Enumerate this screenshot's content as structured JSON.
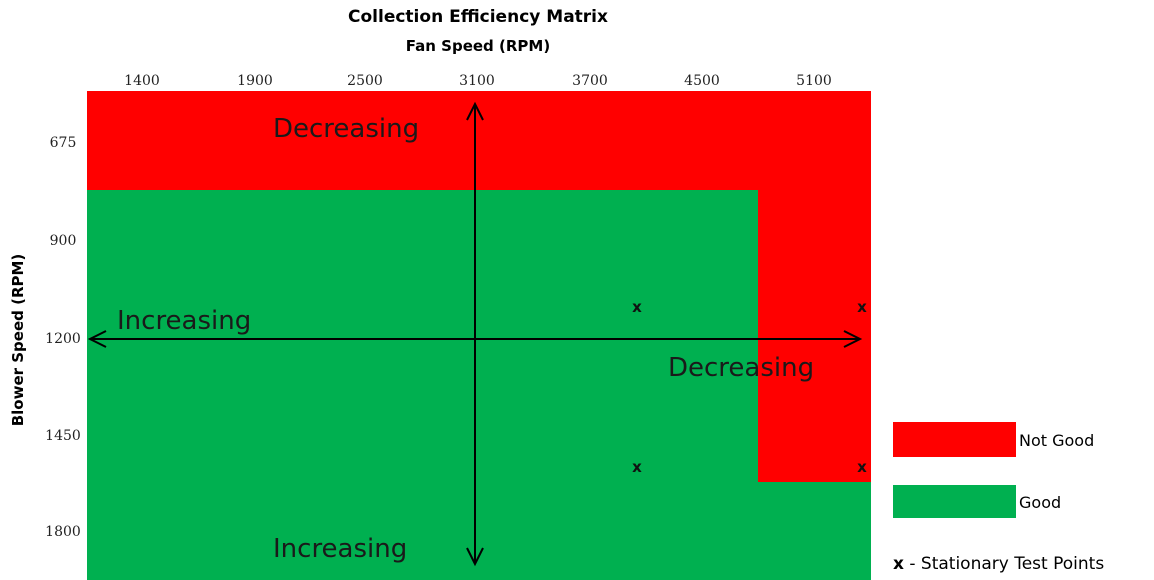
{
  "title": "Collection Efficiency Matrix",
  "x_axis_title": "Fan Speed (RPM)",
  "y_axis_title": "Blower Speed (RPM)",
  "fan_speeds": [
    "1400",
    "1900",
    "2500",
    "3100",
    "3700",
    "4500",
    "5100"
  ],
  "blower_speeds": [
    "675",
    "900",
    "1200",
    "1450",
    "1800"
  ],
  "regions": [
    {
      "label": "Not Good",
      "color": "#ff0000"
    },
    {
      "label": "Good",
      "color": "#00b050"
    }
  ],
  "direction_labels": {
    "top": "Decreasing",
    "bottom": "Increasing",
    "left": "Increasing",
    "right": "Decreasing"
  },
  "test_point_symbol": "x",
  "legend": {
    "not_good": "Not Good",
    "good": "Good",
    "marker_symbol": "x",
    "marker_text": "-  Stationary Test Points"
  }
}
